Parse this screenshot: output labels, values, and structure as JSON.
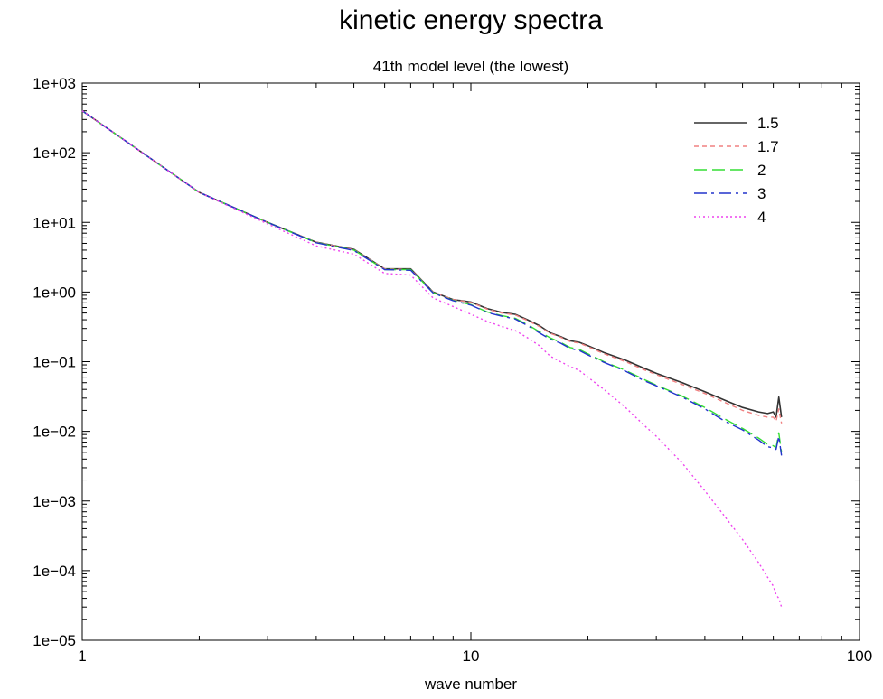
{
  "chart_data": {
    "type": "line",
    "title": "kinetic energy spectra",
    "subtitle": "41th model level (the lowest)",
    "xlabel": "wave number",
    "ylabel": "",
    "xscale": "log",
    "yscale": "log",
    "xlim": [
      1,
      100
    ],
    "ylim": [
      1e-05,
      1000
    ],
    "xticks": [
      {
        "value": 1,
        "label": "1"
      },
      {
        "value": 10,
        "label": "10"
      },
      {
        "value": 100,
        "label": "100"
      }
    ],
    "yticks": [
      {
        "value": 1000,
        "label": "1e+03"
      },
      {
        "value": 100,
        "label": "1e+02"
      },
      {
        "value": 10,
        "label": "1e+01"
      },
      {
        "value": 1,
        "label": "1e+00"
      },
      {
        "value": 0.1,
        "label": "1e−01"
      },
      {
        "value": 0.01,
        "label": "1e−02"
      },
      {
        "value": 0.001,
        "label": "1e−03"
      },
      {
        "value": 0.0001,
        "label": "1e−04"
      },
      {
        "value": 1e-05,
        "label": "1e−05"
      }
    ],
    "grid": false,
    "legend": "top-right",
    "x": [
      1,
      2,
      3,
      4,
      5,
      6,
      7,
      8,
      9,
      10,
      11,
      12,
      13,
      14,
      15,
      16,
      17,
      18,
      19,
      20,
      22,
      25,
      28,
      30,
      35,
      40,
      45,
      50,
      55,
      58,
      60,
      61,
      62,
      63
    ],
    "series": [
      {
        "name": "1.5",
        "color": "#333333",
        "dash": "solid",
        "values": [
          400,
          27,
          10,
          5.2,
          4.1,
          2.15,
          2.15,
          1.0,
          0.78,
          0.72,
          0.58,
          0.51,
          0.48,
          0.4,
          0.33,
          0.26,
          0.23,
          0.2,
          0.19,
          0.17,
          0.135,
          0.105,
          0.08,
          0.068,
          0.05,
          0.037,
          0.028,
          0.022,
          0.019,
          0.018,
          0.019,
          0.016,
          0.031,
          0.016
        ]
      },
      {
        "name": "1.7",
        "color": "#f08080",
        "dash": "short",
        "values": [
          400,
          27,
          10,
          5.2,
          4.05,
          2.15,
          2.1,
          1.0,
          0.78,
          0.71,
          0.57,
          0.5,
          0.47,
          0.39,
          0.32,
          0.255,
          0.225,
          0.195,
          0.185,
          0.165,
          0.13,
          0.1,
          0.076,
          0.065,
          0.047,
          0.035,
          0.026,
          0.02,
          0.017,
          0.016,
          0.016,
          0.014,
          0.021,
          0.013
        ]
      },
      {
        "name": "2",
        "color": "#33dd33",
        "dash": "long",
        "values": [
          400,
          27,
          10,
          5.15,
          4.0,
          2.1,
          2.1,
          0.98,
          0.76,
          0.66,
          0.52,
          0.46,
          0.42,
          0.34,
          0.27,
          0.22,
          0.19,
          0.16,
          0.15,
          0.13,
          0.1,
          0.075,
          0.055,
          0.046,
          0.032,
          0.022,
          0.015,
          0.011,
          0.008,
          0.0065,
          0.0062,
          0.0058,
          0.0095,
          0.005
        ]
      },
      {
        "name": "3",
        "color": "#2233cc",
        "dash": "dashdot",
        "values": [
          400,
          27,
          10,
          5.1,
          3.95,
          2.1,
          2.05,
          0.97,
          0.75,
          0.65,
          0.51,
          0.45,
          0.41,
          0.33,
          0.26,
          0.21,
          0.185,
          0.155,
          0.145,
          0.125,
          0.098,
          0.073,
          0.053,
          0.045,
          0.031,
          0.021,
          0.014,
          0.0105,
          0.0075,
          0.006,
          0.0058,
          0.0055,
          0.0085,
          0.0045
        ]
      },
      {
        "name": "4",
        "color": "#ee44ee",
        "dash": "dotted",
        "values": [
          400,
          27,
          9.5,
          4.6,
          3.5,
          1.85,
          1.75,
          0.82,
          0.62,
          0.48,
          0.38,
          0.32,
          0.28,
          0.22,
          0.17,
          0.12,
          0.1,
          0.085,
          0.075,
          0.06,
          0.04,
          0.022,
          0.012,
          0.0085,
          0.0035,
          0.0014,
          0.0006,
          0.00028,
          0.00013,
          8e-05,
          6e-05,
          4.5e-05,
          4e-05,
          3e-05
        ]
      }
    ]
  }
}
